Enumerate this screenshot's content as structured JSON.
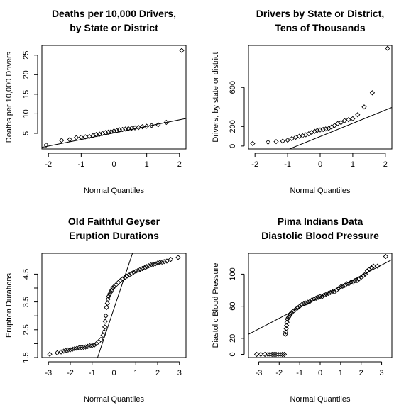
{
  "chart_data": [
    {
      "type": "scatter",
      "title": [
        "Deaths per 10,000 Drivers,",
        "by State or District"
      ],
      "xlabel": "Normal Quantiles",
      "ylabel": "Deaths per 10,000 Drivers",
      "xlim": [
        -2.2,
        2.2
      ],
      "ylim": [
        1.0,
        27.5
      ],
      "xticks": [
        -2,
        -1,
        0,
        1,
        2
      ],
      "yticks": [
        5,
        10,
        15,
        20,
        25
      ],
      "ref_line": [
        [
          -2.2,
          1.4
        ],
        [
          2.2,
          8.8
        ]
      ],
      "series": [
        {
          "x": [
            -2.07,
            -1.6,
            -1.35,
            -1.15,
            -1.0,
            -0.87,
            -0.75,
            -0.64,
            -0.54,
            -0.44,
            -0.35,
            -0.26,
            -0.17,
            -0.09,
            0.0,
            0.09,
            0.17,
            0.26,
            0.35,
            0.44,
            0.54,
            0.64,
            0.75,
            0.87,
            1.0,
            1.15,
            1.35,
            1.6,
            2.07
          ],
          "y": [
            2.0,
            3.2,
            3.4,
            3.9,
            4.0,
            4.1,
            4.2,
            4.4,
            4.7,
            4.8,
            5.0,
            5.2,
            5.3,
            5.4,
            5.6,
            5.7,
            5.9,
            6.0,
            6.1,
            6.2,
            6.3,
            6.4,
            6.5,
            6.7,
            6.8,
            7.0,
            7.2,
            7.8,
            26.2
          ]
        }
      ]
    },
    {
      "type": "scatter",
      "title": [
        "Drivers by State or District,",
        "Tens of Thousands"
      ],
      "xlabel": "Normal Quantiles",
      "ylabel": "Drivers, by state or district",
      "xlim": [
        -2.2,
        2.2
      ],
      "ylim": [
        -30,
        1030
      ],
      "xticks": [
        -2,
        -1,
        0,
        1,
        2
      ],
      "yticks": [
        0,
        200,
        600
      ],
      "ref_line": [
        [
          -2.2,
          -200
        ],
        [
          2.2,
          395
        ]
      ],
      "series": [
        {
          "x": [
            -2.07,
            -1.6,
            -1.35,
            -1.15,
            -1.0,
            -0.87,
            -0.75,
            -0.64,
            -0.54,
            -0.44,
            -0.35,
            -0.26,
            -0.17,
            -0.09,
            0.0,
            0.09,
            0.17,
            0.26,
            0.35,
            0.44,
            0.54,
            0.64,
            0.75,
            0.87,
            1.0,
            1.15,
            1.35,
            1.6,
            2.07
          ],
          "y": [
            25,
            40,
            45,
            50,
            60,
            75,
            90,
            100,
            105,
            115,
            125,
            140,
            150,
            160,
            165,
            170,
            175,
            180,
            195,
            210,
            230,
            240,
            260,
            270,
            280,
            320,
            400,
            545,
            1000
          ]
        }
      ]
    },
    {
      "type": "scatter",
      "title": [
        "Old Faithful Geyser",
        "Eruption Durations"
      ],
      "xlabel": "Normal Quantiles",
      "ylabel": "Eruption Durations",
      "xlim": [
        -3.3,
        3.3
      ],
      "ylim": [
        1.5,
        5.25
      ],
      "xticks": [
        -3,
        -2,
        -1,
        0,
        1,
        2,
        3
      ],
      "yticks": [
        1.5,
        2.5,
        3.5,
        4.5
      ],
      "yticks_minor": [
        2.0,
        3.0,
        4.0
      ],
      "ref_line": [
        [
          -0.75,
          1.5
        ],
        [
          0.85,
          5.25
        ]
      ],
      "series": [
        {
          "x": [
            -2.94,
            -2.6,
            -2.42,
            -2.3,
            -2.2,
            -2.1,
            -2.0,
            -1.9,
            -1.8,
            -1.7,
            -1.6,
            -1.5,
            -1.4,
            -1.3,
            -1.2,
            -1.1,
            -1.0,
            -0.9,
            -0.8,
            -0.7,
            -0.6,
            -0.5,
            -0.45,
            -0.42,
            -0.4,
            -0.37,
            -0.34,
            -0.3,
            -0.27,
            -0.24,
            -0.2,
            -0.15,
            -0.1,
            -0.05,
            0.0,
            0.1,
            0.2,
            0.3,
            0.4,
            0.5,
            0.6,
            0.7,
            0.8,
            0.9,
            1.0,
            1.1,
            1.2,
            1.3,
            1.4,
            1.5,
            1.6,
            1.7,
            1.8,
            1.9,
            2.0,
            2.1,
            2.2,
            2.3,
            2.42,
            2.6,
            2.94
          ],
          "y": [
            1.62,
            1.67,
            1.7,
            1.73,
            1.75,
            1.77,
            1.78,
            1.8,
            1.82,
            1.83,
            1.85,
            1.86,
            1.87,
            1.88,
            1.9,
            1.92,
            1.93,
            1.95,
            2.0,
            2.07,
            2.15,
            2.3,
            2.43,
            2.6,
            2.8,
            3.0,
            3.3,
            3.45,
            3.6,
            3.7,
            3.78,
            3.85,
            3.92,
            4.0,
            4.05,
            4.12,
            4.2,
            4.27,
            4.33,
            4.38,
            4.43,
            4.47,
            4.52,
            4.57,
            4.6,
            4.63,
            4.67,
            4.7,
            4.73,
            4.77,
            4.8,
            4.83,
            4.85,
            4.87,
            4.9,
            4.92,
            4.93,
            4.95,
            4.97,
            5.03,
            5.1
          ]
        }
      ]
    },
    {
      "type": "scatter",
      "title": [
        "Pima Indians Data",
        "Diastolic Blood Pressure"
      ],
      "xlabel": "Normal Quantiles",
      "ylabel": "Diastolic Blood Pressure",
      "xlim": [
        -3.5,
        3.5
      ],
      "ylim": [
        -4,
        126
      ],
      "xticks": [
        -3,
        -2,
        -1,
        0,
        1,
        2,
        3
      ],
      "yticks": [
        0,
        20,
        60,
        100
      ],
      "ref_line": [
        [
          -3.5,
          25
        ],
        [
          3.5,
          118
        ]
      ],
      "series": [
        {
          "x": [
            -3.1,
            -2.9,
            -2.7,
            -2.55,
            -2.45,
            -2.35,
            -2.25,
            -2.15,
            -2.05,
            -1.95,
            -1.85,
            -1.75,
            -1.7,
            -1.68,
            -1.66,
            -1.64,
            -1.62,
            -1.6,
            -1.55,
            -1.5,
            -1.45,
            -1.4,
            -1.3,
            -1.2,
            -1.1,
            -1.0,
            -0.9,
            -0.8,
            -0.7,
            -0.6,
            -0.5,
            -0.4,
            -0.3,
            -0.2,
            -0.1,
            0.0,
            0.1,
            0.2,
            0.3,
            0.4,
            0.5,
            0.6,
            0.7,
            0.8,
            0.9,
            1.0,
            1.1,
            1.2,
            1.3,
            1.4,
            1.5,
            1.6,
            1.7,
            1.8,
            1.9,
            2.0,
            2.1,
            2.2,
            2.3,
            2.4,
            2.5,
            2.6,
            2.8,
            3.2
          ],
          "y": [
            0,
            0,
            0,
            0,
            0,
            0,
            0,
            0,
            0,
            0,
            0,
            0,
            25,
            28,
            32,
            36,
            40,
            44,
            46,
            48,
            50,
            52,
            54,
            56,
            58,
            60,
            62,
            63,
            64,
            65,
            66,
            68,
            69,
            70,
            71,
            72,
            72,
            74,
            75,
            76,
            77,
            78,
            78,
            80,
            82,
            84,
            85,
            86,
            88,
            88,
            90,
            90,
            92,
            92,
            94,
            96,
            98,
            100,
            104,
            106,
            108,
            110,
            110,
            122
          ]
        }
      ]
    }
  ]
}
